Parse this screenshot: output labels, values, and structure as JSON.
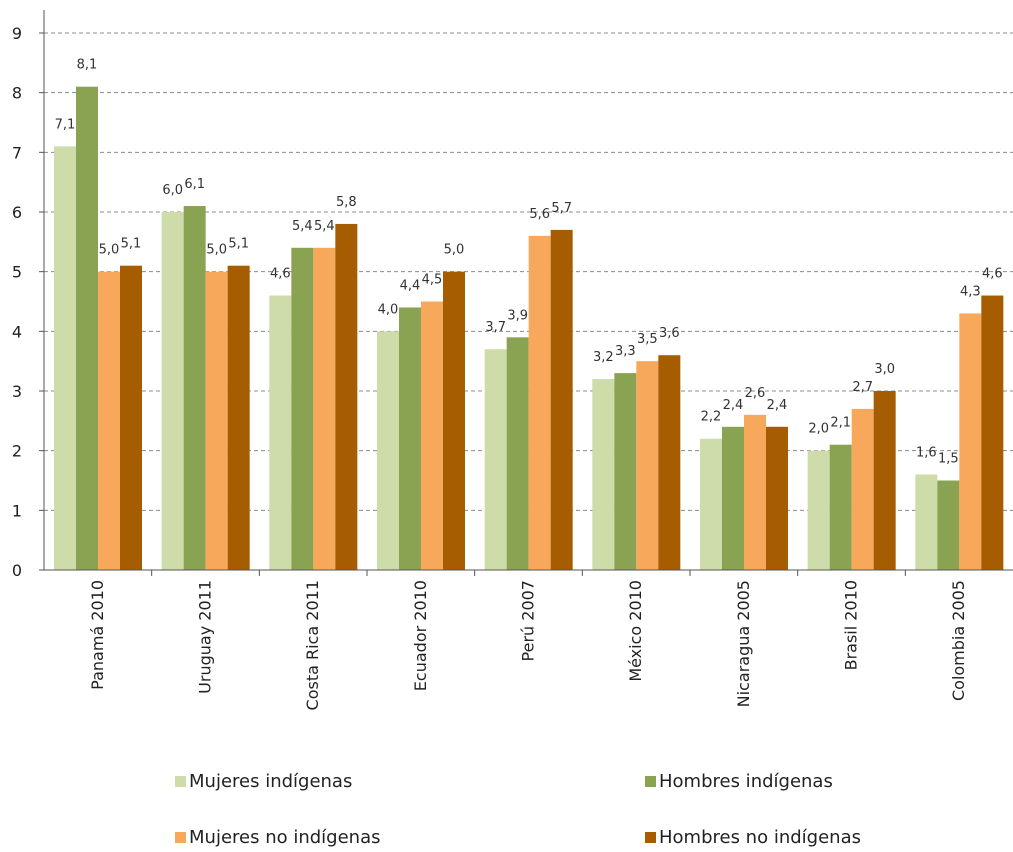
{
  "chart_data": {
    "type": "bar",
    "categories": [
      "Panamá 2010",
      "Uruguay 2011",
      "Costa Rica 2011",
      "Ecuador 2010",
      "Perú 2007",
      "México 2010",
      "Nicaragua 2005",
      "Brasil 2010",
      "Colombia 2005"
    ],
    "series": [
      {
        "name": "Mujeres indígenas",
        "color": "#cddca8",
        "values": [
          7.1,
          6.0,
          4.6,
          4.0,
          3.7,
          3.2,
          2.2,
          2.0,
          1.6
        ]
      },
      {
        "name": "Hombres indígenas",
        "color": "#8aa352",
        "values": [
          8.1,
          6.1,
          5.4,
          4.4,
          3.9,
          3.3,
          2.4,
          2.1,
          1.5
        ]
      },
      {
        "name": "Mujeres no indígenas",
        "color": "#f7a85a",
        "values": [
          5.0,
          5.0,
          5.4,
          4.5,
          5.6,
          3.5,
          2.6,
          2.7,
          4.3
        ]
      },
      {
        "name": "Hombres no indígenas",
        "color": "#a65c00",
        "values": [
          5.1,
          5.1,
          5.8,
          5.0,
          5.7,
          3.6,
          2.4,
          3.0,
          4.6
        ]
      }
    ],
    "value_labels": [
      [
        "7,1",
        "6,0",
        "4,6",
        "4,0",
        "3,7",
        "3,2",
        "2,2",
        "2,0",
        "1,6"
      ],
      [
        "8,1",
        "6,1",
        "5,4",
        "4,4",
        "3,9",
        "3,3",
        "2,4",
        "2,1",
        "1,5"
      ],
      [
        "5,0",
        "5,0",
        "5,4",
        "4,5",
        "5,6",
        "3,5",
        "2,6",
        "2,7",
        "4,3"
      ],
      [
        "5,1",
        "5,1",
        "5,8",
        "5,0",
        "5,7",
        "3,6",
        "2,4",
        "3,0",
        "4,6"
      ]
    ],
    "yticks": [
      0,
      1,
      2,
      3,
      4,
      5,
      6,
      7,
      8,
      9
    ],
    "ylim": [
      0,
      9
    ],
    "grid": "horizontal dashed",
    "legend_position": "bottom",
    "title": "",
    "xlabel": "",
    "ylabel": ""
  }
}
